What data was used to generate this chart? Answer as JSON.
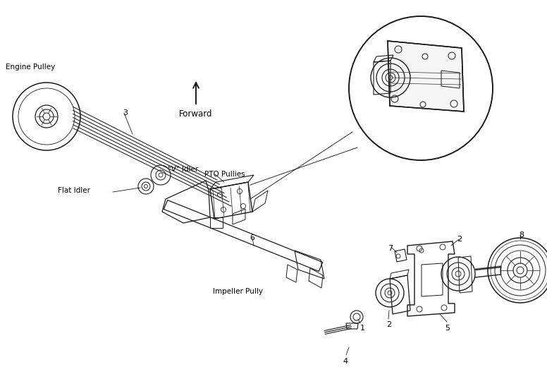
{
  "bg": "#ffffff",
  "lc": "#1a1a1a",
  "tc": "#000000",
  "labels": {
    "engine_pulley": "Engine Pulley",
    "flat_idler": "Flat Idler",
    "v_idler": "\"V\" Idler",
    "pto_pullies": "PTO Pullies",
    "impeller_pully": "Impeller Pully",
    "forward": "Forward",
    "n1": "1",
    "n2a": "2",
    "n2b": "2",
    "n3": "3",
    "n4": "4",
    "n5": "5",
    "n6": "6",
    "n7": "7",
    "n8": "8"
  }
}
